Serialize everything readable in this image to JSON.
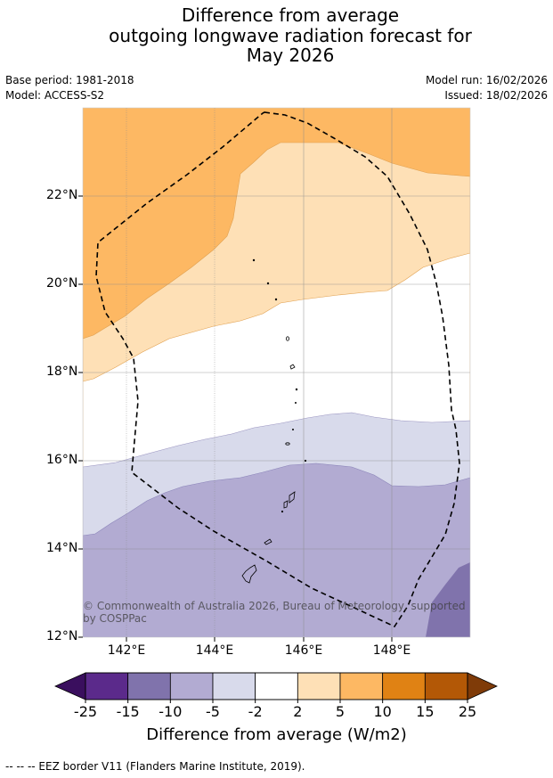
{
  "title": {
    "line1": "Difference from average",
    "line2": "outgoing longwave radiation forecast for",
    "line3": "May 2026"
  },
  "meta": {
    "base_period": "Base period: 1981-2018",
    "model": "Model: ACCESS-S2",
    "model_run": "Model run: 16/02/2026",
    "issued": "Issued: 18/02/2026"
  },
  "map": {
    "lat_labels": [
      "22°N",
      "20°N",
      "18°N",
      "16°N",
      "14°N",
      "12°N"
    ],
    "lon_labels": [
      "142°E",
      "144°E",
      "146°E",
      "148°E"
    ],
    "copyright": "© Commonwealth of Australia 2026, Bureau of Meteorology, supported by COSPPac"
  },
  "colorbar": {
    "ticks": [
      "-25",
      "-15",
      "-10",
      "-5",
      "-2",
      "2",
      "5",
      "10",
      "15",
      "25"
    ],
    "colors": [
      "#5b2a8b",
      "#8073ac",
      "#b2abd2",
      "#d8daeb",
      "#ffffff",
      "#fee0b6",
      "#fdb863",
      "#e08214",
      "#b35806"
    ],
    "under_color": "#3a0f5e",
    "over_color": "#7f3b08",
    "label": "Difference from average (W/m2)"
  },
  "footnote": "--  --  -- EEZ border V11 (Flanders Marine Institute, 2019)."
}
